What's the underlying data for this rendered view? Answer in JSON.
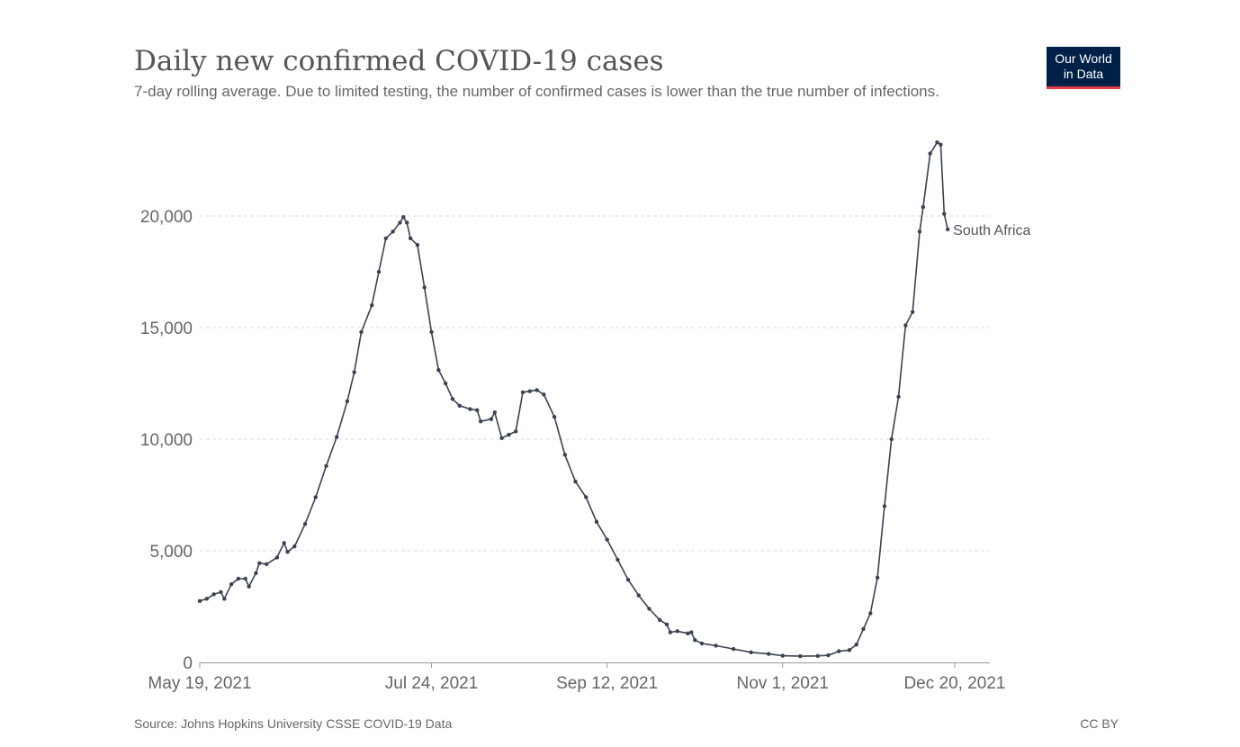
{
  "header": {
    "title": "Daily new confirmed COVID-19 cases",
    "subtitle": "7-day rolling average. Due to limited testing, the number of confirmed cases is lower than the true number of infections."
  },
  "logo": {
    "line1": "Our World",
    "line2": "in Data",
    "bg_color": "#002147",
    "accent_color": "#e63946"
  },
  "footer": {
    "source": "Source: Johns Hopkins University CSSE COVID-19 Data",
    "license": "CC BY"
  },
  "chart_data": {
    "type": "line",
    "x_type": "date",
    "x_ticks": [
      "May 19, 2021",
      "Jul 24, 2021",
      "Sep 12, 2021",
      "Nov 1, 2021",
      "Dec 20, 2021"
    ],
    "x_tick_dates": [
      "2021-05-19",
      "2021-07-24",
      "2021-09-12",
      "2021-11-01",
      "2021-12-20"
    ],
    "xlim": [
      "2021-05-19",
      "2021-12-30"
    ],
    "y_ticks": [
      0,
      5000,
      10000,
      15000,
      20000
    ],
    "y_tick_labels": [
      "0",
      "5,000",
      "10,000",
      "15,000",
      "20,000"
    ],
    "ylim": [
      0,
      23500
    ],
    "grid": "horizontal dashed",
    "legend": "inline label at line end",
    "series": [
      {
        "name": "South Africa",
        "color": "#3b4252",
        "points": [
          [
            "2021-05-19",
            2750
          ],
          [
            "2021-05-21",
            2850
          ],
          [
            "2021-05-23",
            3050
          ],
          [
            "2021-05-25",
            3150
          ],
          [
            "2021-05-26",
            2850
          ],
          [
            "2021-05-28",
            3500
          ],
          [
            "2021-05-30",
            3750
          ],
          [
            "2021-06-01",
            3750
          ],
          [
            "2021-06-02",
            3400
          ],
          [
            "2021-06-04",
            4000
          ],
          [
            "2021-06-05",
            4450
          ],
          [
            "2021-06-07",
            4400
          ],
          [
            "2021-06-10",
            4700
          ],
          [
            "2021-06-12",
            5350
          ],
          [
            "2021-06-13",
            4950
          ],
          [
            "2021-06-15",
            5200
          ],
          [
            "2021-06-18",
            6200
          ],
          [
            "2021-06-21",
            7400
          ],
          [
            "2021-06-24",
            8800
          ],
          [
            "2021-06-27",
            10100
          ],
          [
            "2021-06-30",
            11700
          ],
          [
            "2021-07-02",
            13000
          ],
          [
            "2021-07-04",
            14800
          ],
          [
            "2021-07-07",
            16000
          ],
          [
            "2021-07-09",
            17500
          ],
          [
            "2021-07-11",
            19000
          ],
          [
            "2021-07-13",
            19300
          ],
          [
            "2021-07-15",
            19700
          ],
          [
            "2021-07-16",
            19950
          ],
          [
            "2021-07-17",
            19700
          ],
          [
            "2021-07-18",
            19000
          ],
          [
            "2021-07-20",
            18700
          ],
          [
            "2021-07-22",
            16800
          ],
          [
            "2021-07-24",
            14800
          ],
          [
            "2021-07-26",
            13100
          ],
          [
            "2021-07-28",
            12500
          ],
          [
            "2021-07-30",
            11800
          ],
          [
            "2021-08-01",
            11500
          ],
          [
            "2021-08-04",
            11350
          ],
          [
            "2021-08-06",
            11300
          ],
          [
            "2021-08-07",
            10800
          ],
          [
            "2021-08-10",
            10900
          ],
          [
            "2021-08-11",
            11200
          ],
          [
            "2021-08-13",
            10050
          ],
          [
            "2021-08-15",
            10200
          ],
          [
            "2021-08-17",
            10350
          ],
          [
            "2021-08-19",
            12100
          ],
          [
            "2021-08-21",
            12150
          ],
          [
            "2021-08-23",
            12200
          ],
          [
            "2021-08-25",
            12000
          ],
          [
            "2021-08-28",
            11000
          ],
          [
            "2021-08-31",
            9300
          ],
          [
            "2021-09-03",
            8100
          ],
          [
            "2021-09-06",
            7400
          ],
          [
            "2021-09-09",
            6300
          ],
          [
            "2021-09-12",
            5500
          ],
          [
            "2021-09-15",
            4600
          ],
          [
            "2021-09-18",
            3700
          ],
          [
            "2021-09-21",
            3000
          ],
          [
            "2021-09-24",
            2400
          ],
          [
            "2021-09-27",
            1900
          ],
          [
            "2021-09-29",
            1700
          ],
          [
            "2021-09-30",
            1350
          ],
          [
            "2021-10-02",
            1400
          ],
          [
            "2021-10-05",
            1300
          ],
          [
            "2021-10-06",
            1350
          ],
          [
            "2021-10-07",
            1000
          ],
          [
            "2021-10-09",
            850
          ],
          [
            "2021-10-13",
            750
          ],
          [
            "2021-10-18",
            600
          ],
          [
            "2021-10-23",
            450
          ],
          [
            "2021-10-28",
            380
          ],
          [
            "2021-11-01",
            300
          ],
          [
            "2021-11-06",
            280
          ],
          [
            "2021-11-11",
            290
          ],
          [
            "2021-11-14",
            320
          ],
          [
            "2021-11-17",
            500
          ],
          [
            "2021-11-20",
            550
          ],
          [
            "2021-11-22",
            800
          ],
          [
            "2021-11-24",
            1500
          ],
          [
            "2021-11-26",
            2200
          ],
          [
            "2021-11-28",
            3800
          ],
          [
            "2021-11-30",
            7000
          ],
          [
            "2021-12-02",
            10000
          ],
          [
            "2021-12-04",
            11900
          ],
          [
            "2021-12-06",
            15100
          ],
          [
            "2021-12-08",
            15700
          ],
          [
            "2021-12-10",
            19300
          ],
          [
            "2021-12-11",
            20400
          ],
          [
            "2021-12-13",
            22800
          ],
          [
            "2021-12-15",
            23300
          ],
          [
            "2021-12-16",
            23200
          ],
          [
            "2021-12-17",
            20100
          ],
          [
            "2021-12-18",
            19400
          ]
        ]
      }
    ]
  }
}
